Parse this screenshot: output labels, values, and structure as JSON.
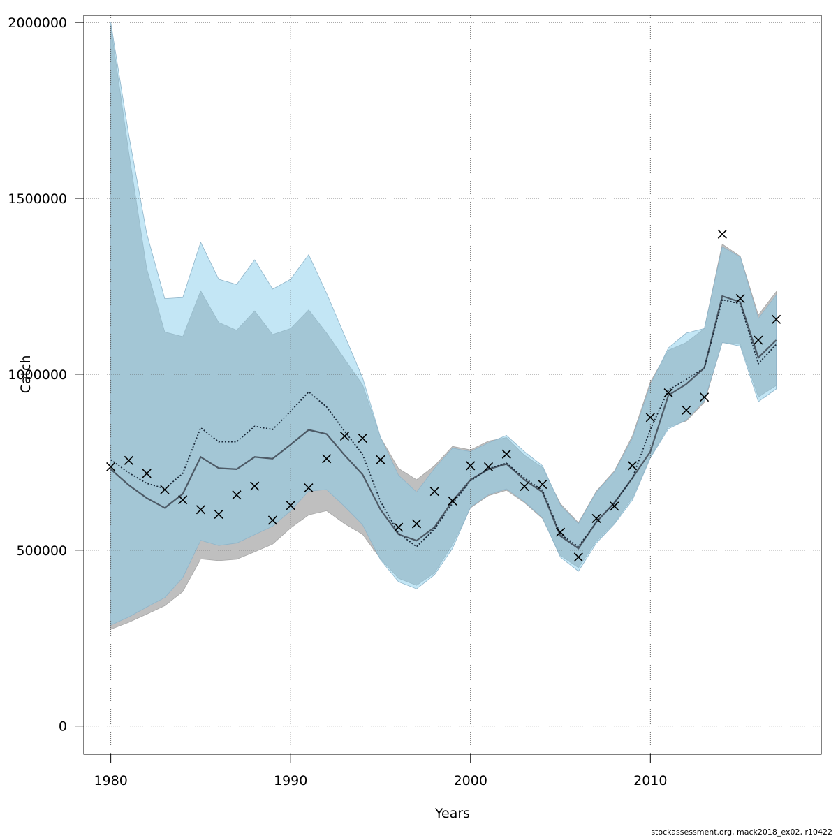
{
  "chart_data": {
    "type": "line",
    "xlabel": "Years",
    "ylabel": "Catch",
    "xlim": [
      1978.5,
      2019.5
    ],
    "ylim": [
      -80000,
      2020000
    ],
    "x_ticks": [
      1980,
      1990,
      2000,
      2010
    ],
    "y_ticks": [
      0,
      500000,
      1000000,
      1500000,
      2000000
    ],
    "grid": true,
    "x": [
      1980,
      1981,
      1982,
      1983,
      1984,
      1985,
      1986,
      1987,
      1988,
      1989,
      1990,
      1991,
      1992,
      1993,
      1994,
      1995,
      1996,
      1997,
      1998,
      1999,
      2000,
      2001,
      2002,
      2003,
      2004,
      2005,
      2006,
      2007,
      2008,
      2009,
      2010,
      2011,
      2012,
      2013,
      2014,
      2015,
      2016,
      2017
    ],
    "series": [
      {
        "line_style": "solid",
        "color": "#4d5a66",
        "band_color": "#bfbfbf",
        "values": [
          730000,
          685000,
          648000,
          620000,
          660000,
          765000,
          733000,
          730000,
          765000,
          760000,
          800000,
          842000,
          830000,
          770000,
          715000,
          615000,
          545000,
          527000,
          565000,
          640000,
          700000,
          730000,
          745000,
          700000,
          665000,
          540000,
          505000,
          580000,
          635000,
          705000,
          780000,
          940000,
          972000,
          1018000,
          1222000,
          1205000,
          1047000,
          1097000
        ],
        "lower": [
          275000,
          295000,
          318000,
          342000,
          382000,
          475000,
          470000,
          474000,
          495000,
          517000,
          563000,
          600000,
          612000,
          575000,
          545000,
          475000,
          420000,
          400000,
          435000,
          515000,
          620000,
          655000,
          670000,
          635000,
          590000,
          485000,
          450000,
          525000,
          577000,
          648000,
          765000,
          850000,
          867000,
          920000,
          1090000,
          1085000,
          935000,
          968000
        ],
        "upper": [
          1990000,
          1630000,
          1300000,
          1120000,
          1107000,
          1237000,
          1147000,
          1125000,
          1180000,
          1113000,
          1130000,
          1183000,
          1117000,
          1043000,
          970000,
          820000,
          732000,
          700000,
          740000,
          795000,
          785000,
          810000,
          820000,
          770000,
          735000,
          632000,
          578000,
          668000,
          725000,
          825000,
          978000,
          1068000,
          1090000,
          1130000,
          1370000,
          1335000,
          1168000,
          1235000
        ]
      },
      {
        "line_style": "dotted",
        "color": "#1b2a3a",
        "band_color": "#87ceeb",
        "values": [
          757000,
          720000,
          690000,
          675000,
          718000,
          848000,
          808000,
          808000,
          852000,
          843000,
          895000,
          950000,
          907000,
          838000,
          772000,
          638000,
          548000,
          510000,
          560000,
          633000,
          697000,
          732000,
          747000,
          705000,
          670000,
          545000,
          510000,
          580000,
          633000,
          705000,
          843000,
          955000,
          985000,
          1018000,
          1212000,
          1200000,
          1030000,
          1085000
        ],
        "lower": [
          287000,
          310000,
          338000,
          365000,
          422000,
          528000,
          513000,
          520000,
          544000,
          568000,
          612000,
          668000,
          672000,
          624000,
          572000,
          472000,
          410000,
          390000,
          430000,
          505000,
          622000,
          658000,
          674000,
          638000,
          592000,
          480000,
          440000,
          520000,
          574000,
          642000,
          762000,
          845000,
          870000,
          925000,
          1090000,
          1080000,
          922000,
          958000
        ],
        "upper": [
          2000000,
          1680000,
          1400000,
          1215000,
          1218000,
          1375000,
          1270000,
          1255000,
          1325000,
          1242000,
          1270000,
          1340000,
          1230000,
          1110000,
          990000,
          820000,
          713000,
          665000,
          732000,
          790000,
          780000,
          805000,
          826000,
          780000,
          740000,
          628000,
          575000,
          665000,
          722000,
          818000,
          970000,
          1075000,
          1117000,
          1130000,
          1362000,
          1333000,
          1158000,
          1225000
        ]
      }
    ],
    "observations": {
      "marker": "x",
      "x": [
        1980,
        1981,
        1982,
        1983,
        1984,
        1985,
        1986,
        1987,
        1988,
        1989,
        1990,
        1991,
        1992,
        1993,
        1994,
        1995,
        1996,
        1997,
        1998,
        1999,
        2000,
        2001,
        2002,
        2003,
        2004,
        2005,
        2006,
        2007,
        2008,
        2009,
        2010,
        2011,
        2012,
        2013,
        2014,
        2015,
        2016,
        2017
      ],
      "values": [
        737000,
        755000,
        718000,
        672000,
        643000,
        615000,
        602000,
        657000,
        682000,
        585000,
        627000,
        677000,
        760000,
        824000,
        818000,
        757000,
        565000,
        575000,
        667000,
        640000,
        740000,
        737000,
        773000,
        681000,
        687000,
        551000,
        480000,
        590000,
        625000,
        740000,
        877000,
        947000,
        898000,
        935000,
        1398000,
        1215000,
        1097000,
        1156000
      ]
    }
  },
  "credit": "stockassessment.org, mack2018_ex02, r10422"
}
